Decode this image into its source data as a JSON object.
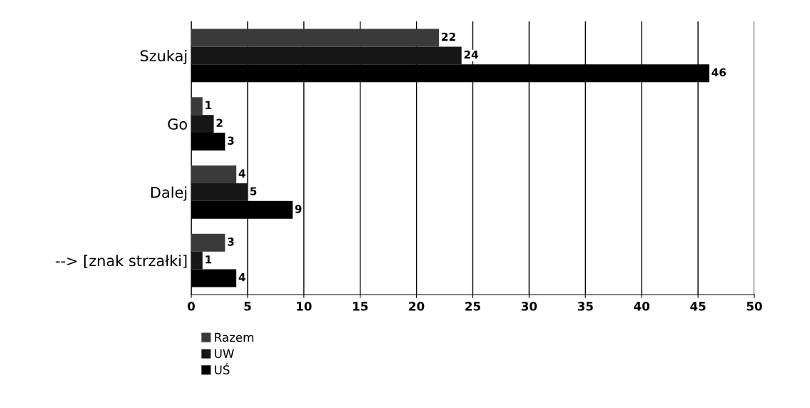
{
  "chart_data": {
    "type": "bar",
    "orientation": "horizontal",
    "categories": [
      "Szukaj",
      "Go",
      "Dalej",
      "--> [znak strzałki]"
    ],
    "series": [
      {
        "name": "Razem",
        "color": "#3a3a3a",
        "values": [
          22,
          1,
          4,
          3
        ]
      },
      {
        "name": "UW",
        "color": "#161616",
        "values": [
          24,
          2,
          5,
          1
        ]
      },
      {
        "name": "UŚ",
        "color": "#000000",
        "values": [
          46,
          3,
          9,
          4
        ]
      }
    ],
    "xlim": [
      0,
      50
    ],
    "xticks": [
      0,
      5,
      10,
      15,
      20,
      25,
      30,
      35,
      40,
      45,
      50
    ],
    "grid": "x",
    "legend": "bottom left",
    "data_labels": true
  }
}
